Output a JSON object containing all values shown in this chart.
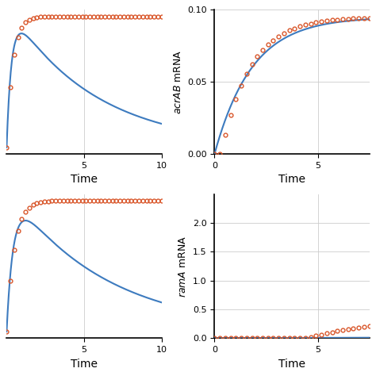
{
  "blue_color": "#3d7bbf",
  "orange_color": "#d9572b",
  "background": "#ffffff",
  "grid_color": "#cccccc",
  "panels": {
    "top_left": {
      "xlim": [
        0,
        10
      ],
      "xticks": [
        5,
        10
      ],
      "xlabel": "Time",
      "ylabel": "",
      "blue_rise": 3.0,
      "blue_fall": 0.18,
      "blue_amplitude": 1.0,
      "orange_rate": 2.5,
      "orange_amplitude": 1.15,
      "n_dots": 42
    },
    "top_right": {
      "xlim": [
        0,
        7.5
      ],
      "ylim": [
        0,
        0.1
      ],
      "xticks": [
        0,
        5
      ],
      "yticks": [
        0,
        0.05,
        0.1
      ],
      "xlabel": "Time",
      "ylabel": "acrAB mRNA",
      "blue_rate": 0.55,
      "blue_max": 0.095,
      "orange_rate": 0.7,
      "orange_max": 0.095,
      "orange_lag": 0.3,
      "n_dots": 30
    },
    "bottom_left": {
      "xlim": [
        0,
        10
      ],
      "xticks": [
        5,
        10
      ],
      "xlabel": "Time",
      "ylabel": "",
      "blue_rise": 2.2,
      "blue_fall": 0.16,
      "blue_amplitude": 1.0,
      "orange_rate": 2.0,
      "orange_amplitude": 1.18,
      "n_dots": 42
    },
    "bottom_right": {
      "xlim": [
        0,
        7.5
      ],
      "ylim": [
        0,
        2.5
      ],
      "xticks": [
        0,
        5
      ],
      "yticks": [
        0,
        0.5,
        1.0,
        1.5,
        2.0
      ],
      "xlabel": "Time",
      "ylabel": "ramA mRNA",
      "blue_rate": 0.05,
      "blue_max": 0.03,
      "orange_rate": 0.3,
      "orange_max": 0.35,
      "orange_lag": 4.5,
      "n_dots": 30
    }
  }
}
